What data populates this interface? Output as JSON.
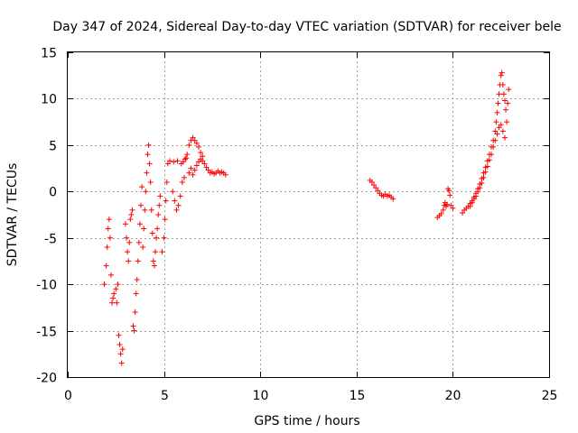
{
  "chart_data": {
    "type": "scatter",
    "title": "Day 347 of 2024, Sidereal Day-to-day VTEC variation (SDTVAR) for receiver bele",
    "xlabel": "GPS time / hours",
    "ylabel": "SDTVAR / TECUs",
    "xlim": [
      0,
      25
    ],
    "ylim": [
      -20,
      15
    ],
    "x_ticks": [
      0,
      5,
      10,
      15,
      20,
      25
    ],
    "y_ticks": [
      -20,
      -15,
      -10,
      -5,
      0,
      5,
      10,
      15
    ],
    "grid": true,
    "marker": "+",
    "series": [
      {
        "name": "SDTVAR",
        "color": "#ff0000",
        "points": [
          [
            1.9,
            -10
          ],
          [
            2.0,
            -8
          ],
          [
            2.05,
            -6
          ],
          [
            2.1,
            -4
          ],
          [
            2.15,
            -3
          ],
          [
            2.2,
            -5
          ],
          [
            2.25,
            -9
          ],
          [
            2.3,
            -12
          ],
          [
            2.35,
            -11.5
          ],
          [
            2.4,
            -11
          ],
          [
            2.5,
            -10.5
          ],
          [
            2.55,
            -12
          ],
          [
            2.6,
            -10
          ],
          [
            2.65,
            -15.5
          ],
          [
            2.7,
            -16.5
          ],
          [
            2.75,
            -17.5
          ],
          [
            2.8,
            -18.5
          ],
          [
            2.85,
            -17
          ],
          [
            3.0,
            -3.5
          ],
          [
            3.05,
            -5
          ],
          [
            3.1,
            -6.5
          ],
          [
            3.15,
            -7.5
          ],
          [
            3.2,
            -5.5
          ],
          [
            3.25,
            -3
          ],
          [
            3.3,
            -2.5
          ],
          [
            3.35,
            -2
          ],
          [
            3.4,
            -14.5
          ],
          [
            3.45,
            -15
          ],
          [
            3.5,
            -13
          ],
          [
            3.55,
            -11
          ],
          [
            3.6,
            -9.5
          ],
          [
            3.65,
            -7.5
          ],
          [
            3.7,
            -5.5
          ],
          [
            3.75,
            -3.5
          ],
          [
            3.8,
            -1.5
          ],
          [
            3.85,
            0.5
          ],
          [
            3.9,
            -6
          ],
          [
            3.95,
            -4
          ],
          [
            4.0,
            -2
          ],
          [
            4.05,
            0
          ],
          [
            4.1,
            2
          ],
          [
            4.15,
            4
          ],
          [
            4.2,
            5
          ],
          [
            4.25,
            3
          ],
          [
            4.3,
            1
          ],
          [
            4.35,
            -2
          ],
          [
            4.4,
            -4.5
          ],
          [
            4.45,
            -7.5
          ],
          [
            4.5,
            -8
          ],
          [
            4.55,
            -6.5
          ],
          [
            4.6,
            -5
          ],
          [
            4.65,
            -4
          ],
          [
            4.7,
            -2.5
          ],
          [
            4.75,
            -1.5
          ],
          [
            4.8,
            -0.5
          ],
          [
            4.9,
            -6.5
          ],
          [
            5.0,
            -5
          ],
          [
            5.05,
            -3
          ],
          [
            5.1,
            -1
          ],
          [
            5.15,
            1
          ],
          [
            5.2,
            3
          ],
          [
            5.3,
            3.3
          ],
          [
            5.5,
            3.2
          ],
          [
            5.7,
            3.3
          ],
          [
            5.9,
            3.0
          ],
          [
            6.0,
            3.2
          ],
          [
            6.1,
            3.5
          ],
          [
            6.15,
            3.6
          ],
          [
            5.45,
            0
          ],
          [
            5.55,
            -1
          ],
          [
            5.65,
            -2
          ],
          [
            5.75,
            -1.5
          ],
          [
            5.85,
            -0.5
          ],
          [
            5.95,
            1
          ],
          [
            6.05,
            1.5
          ],
          [
            6.2,
            4
          ],
          [
            6.3,
            5
          ],
          [
            6.4,
            5.5
          ],
          [
            6.5,
            5.8
          ],
          [
            6.6,
            5.5
          ],
          [
            6.7,
            5.2
          ],
          [
            6.8,
            4.8
          ],
          [
            6.9,
            4.2
          ],
          [
            7.0,
            3.8
          ],
          [
            6.3,
            2
          ],
          [
            6.4,
            2.5
          ],
          [
            6.5,
            1.8
          ],
          [
            6.6,
            2.3
          ],
          [
            6.7,
            2.8
          ],
          [
            6.8,
            3.2
          ],
          [
            6.9,
            3.5
          ],
          [
            7.0,
            3.3
          ],
          [
            7.1,
            3
          ],
          [
            7.2,
            2.6
          ],
          [
            7.3,
            2.3
          ],
          [
            7.4,
            2.0
          ],
          [
            7.5,
            2.1
          ],
          [
            7.6,
            1.9
          ],
          [
            7.7,
            2.0
          ],
          [
            7.8,
            2.2
          ],
          [
            7.9,
            2.0
          ],
          [
            8.0,
            2.1
          ],
          [
            8.1,
            2.0
          ],
          [
            8.2,
            1.8
          ],
          [
            15.7,
            1.2
          ],
          [
            15.8,
            1.0
          ],
          [
            15.9,
            0.7
          ],
          [
            16.0,
            0.4
          ],
          [
            16.1,
            0.1
          ],
          [
            16.2,
            -0.2
          ],
          [
            16.3,
            -0.4
          ],
          [
            16.4,
            -0.5
          ],
          [
            16.5,
            -0.3
          ],
          [
            16.6,
            -0.5
          ],
          [
            16.7,
            -0.4
          ],
          [
            16.8,
            -0.6
          ],
          [
            16.9,
            -0.8
          ],
          [
            19.2,
            -2.8
          ],
          [
            19.3,
            -2.6
          ],
          [
            19.4,
            -2.4
          ],
          [
            19.5,
            -2.0
          ],
          [
            19.55,
            -1.5
          ],
          [
            19.6,
            -1.2
          ],
          [
            19.65,
            -1.6
          ],
          [
            19.7,
            -1.4
          ],
          [
            19.75,
            0.3
          ],
          [
            19.8,
            0.1
          ],
          [
            19.85,
            -0.4
          ],
          [
            19.9,
            -1.5
          ],
          [
            20.0,
            -1.8
          ],
          [
            20.5,
            -2.3
          ],
          [
            20.6,
            -2.0
          ],
          [
            20.7,
            -1.8
          ],
          [
            20.8,
            -1.6
          ],
          [
            20.9,
            -1.3
          ],
          [
            21.0,
            -1.0
          ],
          [
            21.1,
            -0.6
          ],
          [
            21.2,
            -0.2
          ],
          [
            21.3,
            0.3
          ],
          [
            21.4,
            0.8
          ],
          [
            21.5,
            1.4
          ],
          [
            21.6,
            2.0
          ],
          [
            21.7,
            2.6
          ],
          [
            21.8,
            3.3
          ],
          [
            21.9,
            4.0
          ],
          [
            22.0,
            4.8
          ],
          [
            22.1,
            5.5
          ],
          [
            22.2,
            6.5
          ],
          [
            22.25,
            7.5
          ],
          [
            22.3,
            8.5
          ],
          [
            22.35,
            9.5
          ],
          [
            22.4,
            10.5
          ],
          [
            22.45,
            11.5
          ],
          [
            22.5,
            12.5
          ],
          [
            22.55,
            12.8
          ],
          [
            22.6,
            11.5
          ],
          [
            22.65,
            10.5
          ],
          [
            22.7,
            9.8
          ],
          [
            22.75,
            8.8
          ],
          [
            22.8,
            7.5
          ],
          [
            22.85,
            9.5
          ],
          [
            22.9,
            11
          ],
          [
            20.9,
            -1.6
          ],
          [
            21.0,
            -1.2
          ],
          [
            21.1,
            -0.8
          ],
          [
            21.2,
            -0.5
          ],
          [
            21.3,
            0.0
          ],
          [
            21.4,
            0.4
          ],
          [
            21.5,
            0.9
          ],
          [
            21.6,
            1.5
          ],
          [
            21.7,
            2.1
          ],
          [
            21.8,
            2.7
          ],
          [
            21.9,
            3.4
          ],
          [
            22.0,
            4.0
          ],
          [
            22.1,
            4.8
          ],
          [
            22.2,
            5.5
          ],
          [
            22.3,
            6.2
          ],
          [
            22.4,
            6.9
          ],
          [
            22.5,
            7.2
          ],
          [
            22.6,
            6.5
          ],
          [
            22.7,
            5.8
          ]
        ]
      }
    ]
  }
}
